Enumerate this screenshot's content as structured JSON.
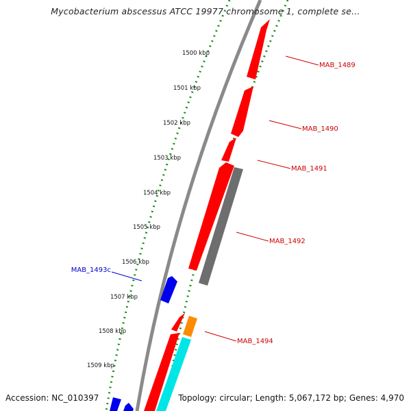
{
  "title": "Mycobacterium abscessus ATCC 19977 chromosome 1, complete se...",
  "footer": {
    "accession": "Accession: NC_010397",
    "summary": "Topology: circular; Length: 5,067,172 bp; Genes: 4,970"
  },
  "colors": {
    "forward_cds": "#ff0000",
    "reverse_cds": "#0000ee",
    "gray_feature": "#6e6e6e",
    "orange_feature": "#ff8c00",
    "cyan_feature": "#00e5e5",
    "backbone": "#8a8a8a",
    "ticks": "#1a8c1a",
    "forward_label": "#cc0000",
    "reverse_label": "#0000cc"
  },
  "scale_labels": [
    "1500 kbp",
    "1501 kbp",
    "1502 kbp",
    "1503 kbp",
    "1504 kbp",
    "1505 kbp",
    "1506 kbp",
    "1507 kbp",
    "1508 kbp",
    "1509 kbp"
  ],
  "genes": [
    {
      "label": "MAB_1489",
      "strand": "forward"
    },
    {
      "label": "MAB_1490",
      "strand": "forward"
    },
    {
      "label": "MAB_1491",
      "strand": "forward"
    },
    {
      "label": "MAB_1492",
      "strand": "forward"
    },
    {
      "label": "MAB_1493c",
      "strand": "reverse"
    },
    {
      "label": "MAB_1494",
      "strand": "forward"
    }
  ]
}
